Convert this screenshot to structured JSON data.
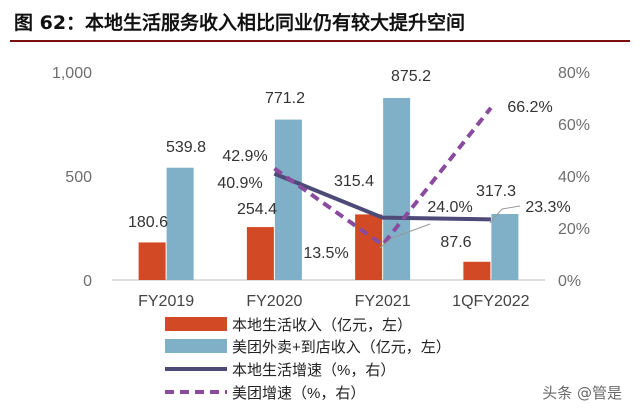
{
  "title": "图 62：本地生活服务收入相比同业仍有较大提升空间",
  "watermark": "头条 @管是",
  "colors": {
    "local_bar": "#d24a25",
    "meituan_bar": "#7fb0c7",
    "local_line": "#4d4a78",
    "meituan_line": "#8a4a9e",
    "title_rule": "#7a0f10",
    "axis_text": "#6e6e6e"
  },
  "chart_data": {
    "type": "bar",
    "categories": [
      "FY2019",
      "FY2020",
      "FY2021",
      "1QFY2022"
    ],
    "y_left": {
      "ticks": [
        "0",
        "500",
        "1,000"
      ],
      "range": [
        0,
        1000
      ]
    },
    "y_right": {
      "ticks": [
        "0%",
        "20%",
        "40%",
        "60%",
        "80%"
      ],
      "range": [
        0,
        80
      ]
    },
    "series": [
      {
        "name": "本地生活收入（亿元，左）",
        "kind": "bar",
        "axis": "left",
        "values": [
          180.6,
          254.4,
          315.4,
          87.6
        ],
        "labels": [
          "180.6",
          "254.4",
          "315.4",
          "87.6"
        ]
      },
      {
        "name": "美团外卖+到店收入（亿元，左）",
        "kind": "bar",
        "axis": "left",
        "values": [
          539.8,
          771.2,
          875.2,
          317.3
        ],
        "labels": [
          "539.8",
          "771.2",
          "875.2",
          "317.3"
        ]
      },
      {
        "name": "本地生活增速（%，右）",
        "kind": "line",
        "axis": "right",
        "values": [
          null,
          40.9,
          24.0,
          23.3
        ],
        "labels": [
          "",
          "40.9%",
          "24.0%",
          "23.3%"
        ]
      },
      {
        "name": "美团增速（%，右）",
        "kind": "line-dashed",
        "axis": "right",
        "values": [
          null,
          42.9,
          13.5,
          66.2
        ],
        "labels": [
          "",
          "42.9%",
          "13.5%",
          "66.2%"
        ]
      }
    ],
    "legend_position": "bottom"
  }
}
